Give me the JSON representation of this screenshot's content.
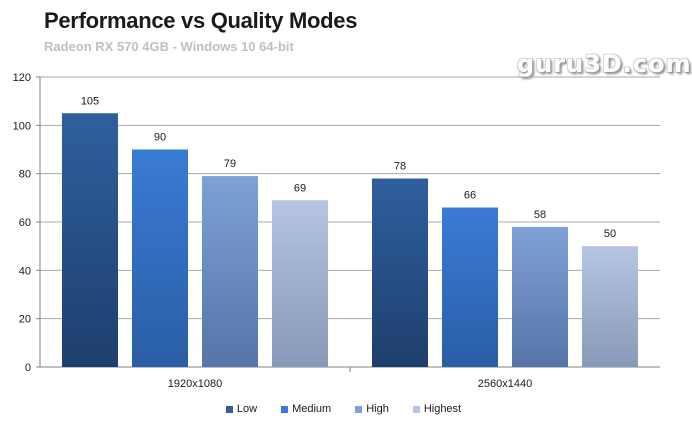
{
  "chart_data": {
    "type": "bar",
    "title": "Performance vs Quality Modes",
    "subtitle": "Radeon RX 570 4GB - Windows 10 64-bit",
    "watermark": "guru3D.com",
    "categories": [
      "1920x1080",
      "2560x1440"
    ],
    "series": [
      {
        "name": "Low",
        "values": [
          105,
          78
        ],
        "color_top": "#2f5f9e",
        "color_bottom": "#1e3f6e"
      },
      {
        "name": "Medium",
        "values": [
          90,
          66
        ],
        "color_top": "#3a7bd5",
        "color_bottom": "#2a5ea6"
      },
      {
        "name": "High",
        "values": [
          79,
          58
        ],
        "color_top": "#7ea1d6",
        "color_bottom": "#5575a8"
      },
      {
        "name": "Highest",
        "values": [
          69,
          50
        ],
        "color_top": "#b5c5e3",
        "color_bottom": "#8898b8"
      }
    ],
    "yticks": [
      "0",
      "20",
      "40",
      "60",
      "80",
      "100",
      "120"
    ],
    "ylim": [
      0,
      120
    ],
    "grid": true,
    "legend_position": "bottom"
  }
}
